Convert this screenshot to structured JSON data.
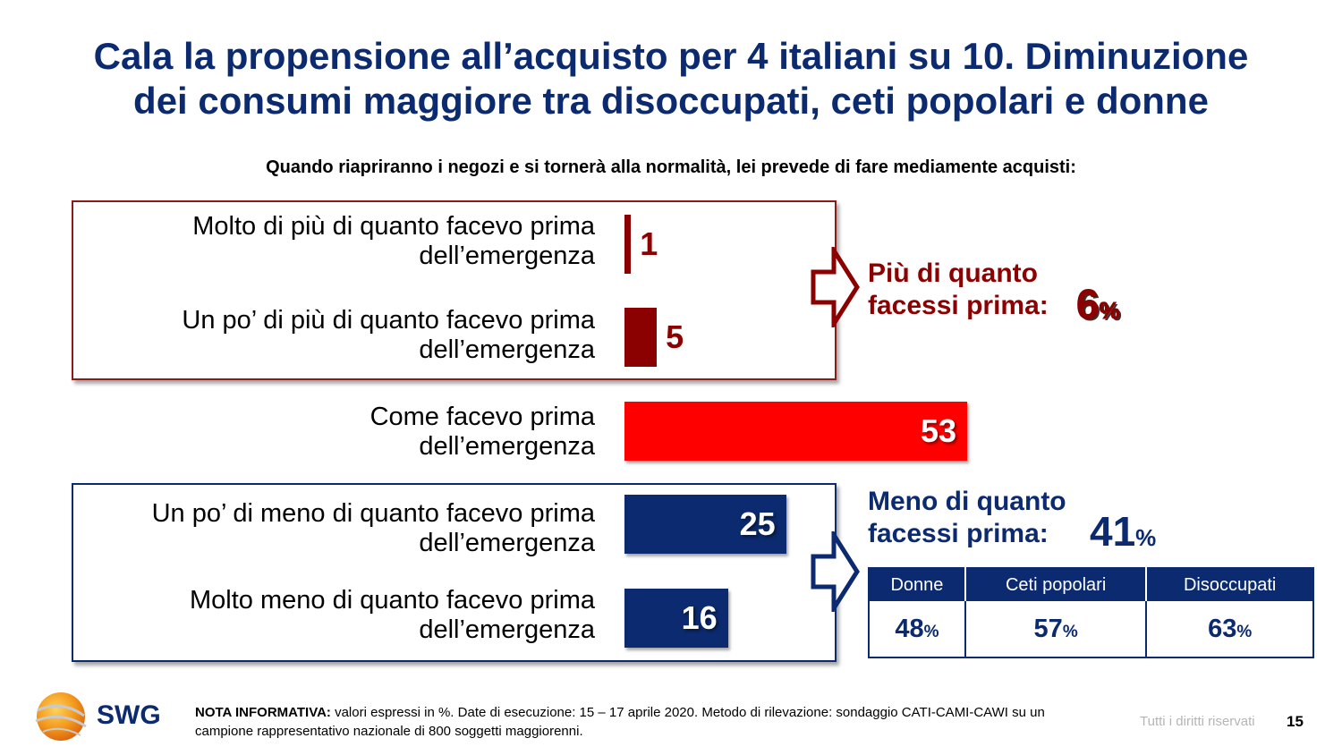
{
  "title_line1": "Cala la propensione all’acquisto per 4 italiani su 10. Diminuzione",
  "title_line2": "dei consumi maggiore tra disoccupati, ceti popolari e donne",
  "chart_data": {
    "type": "bar",
    "orientation": "horizontal",
    "title": "Quando riapriranno i negozi e si tornerà alla normalità, lei prevede di fare mediamente acquisti:",
    "categories": [
      [
        "Molto di più di quanto facevo prima",
        "dell’emergenza"
      ],
      [
        "Un po’ di più di quanto facevo prima",
        "dell’emergenza"
      ],
      [
        "Come facevo prima",
        "dell’emergenza"
      ],
      [
        "Un po’ di meno di quanto facevo prima",
        "dell’emergenza"
      ],
      [
        "Molto meno di quanto facevo prima",
        "dell’emergenza"
      ]
    ],
    "values": [
      1,
      5,
      53,
      25,
      16
    ],
    "colors": [
      "#8b0000",
      "#8b0000",
      "#ff0000",
      "#0b2a6f",
      "#0b2a6f"
    ],
    "unit": "%"
  },
  "summary_more": {
    "line1": "Più di quanto",
    "line2": "facessi prima:",
    "value": "6",
    "unit": "%"
  },
  "summary_less": {
    "line1": "Meno di quanto",
    "line2": "facessi prima:",
    "value": "41",
    "unit": "%"
  },
  "breakdown": {
    "headers": [
      "Donne",
      "Ceti popolari",
      "Disoccupati"
    ],
    "values": [
      "48",
      "57",
      "63"
    ],
    "unit": "%"
  },
  "logo_text": "SWG",
  "note": {
    "bold": "NOTA INFORMATIVA:",
    "text": " valori espressi in %. Date di esecuzione: 15 – 17 aprile 2020. Metodo di rilevazione: sondaggio CATI-CAMI-CAWI su un campione rappresentativo nazionale di 800 soggetti maggiorenni."
  },
  "rights": "Tutti i diritti riservati",
  "page_number": "15"
}
